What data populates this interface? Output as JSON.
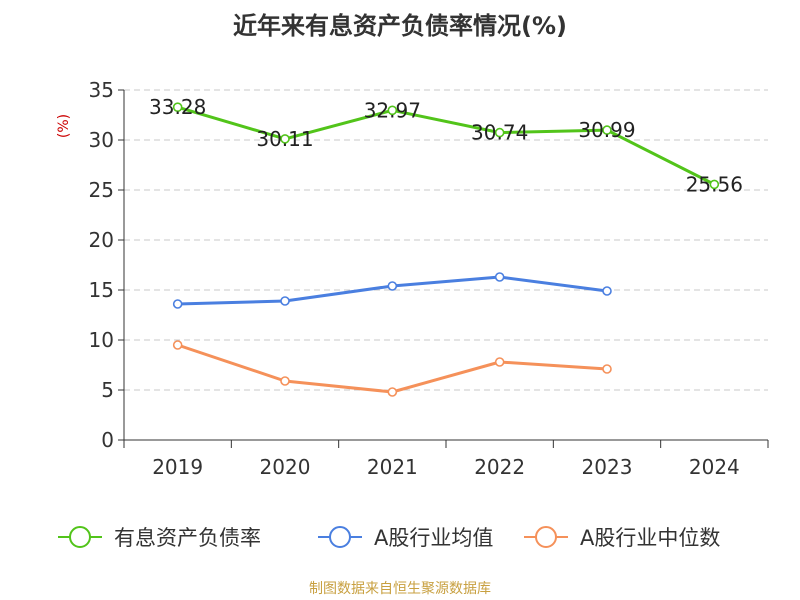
{
  "colors": {
    "series": [
      "#52c41a",
      "#4a7fe0",
      "#f5915a"
    ],
    "axis": "#333333",
    "grid": "#c8c8c8",
    "unit": "#cc0000"
  },
  "source_note": "制图数据来自恒生聚源数据库",
  "chart_data": {
    "type": "line",
    "title": "近年来有息资产负债率情况(%)",
    "ylabel": "(%)",
    "xlabel": "",
    "ylim": [
      0,
      35
    ],
    "yticks": [
      0,
      5,
      10,
      15,
      20,
      25,
      30,
      35
    ],
    "categories": [
      "2019",
      "2020",
      "2021",
      "2022",
      "2023",
      "2024"
    ],
    "grid": "horizontal dashed",
    "legend_position": "bottom",
    "series": [
      {
        "name": "有息资产负债率",
        "values": [
          33.28,
          30.11,
          32.97,
          30.74,
          30.99,
          25.56
        ],
        "labels": [
          "33.28",
          "30.11",
          "32.97",
          "30.74",
          "30.99",
          "25.56"
        ]
      },
      {
        "name": "A股行业均值",
        "values": [
          13.6,
          13.9,
          15.4,
          16.3,
          14.9,
          null
        ]
      },
      {
        "name": "A股行业中位数",
        "values": [
          9.5,
          5.9,
          4.8,
          7.8,
          7.1,
          null
        ]
      }
    ]
  }
}
